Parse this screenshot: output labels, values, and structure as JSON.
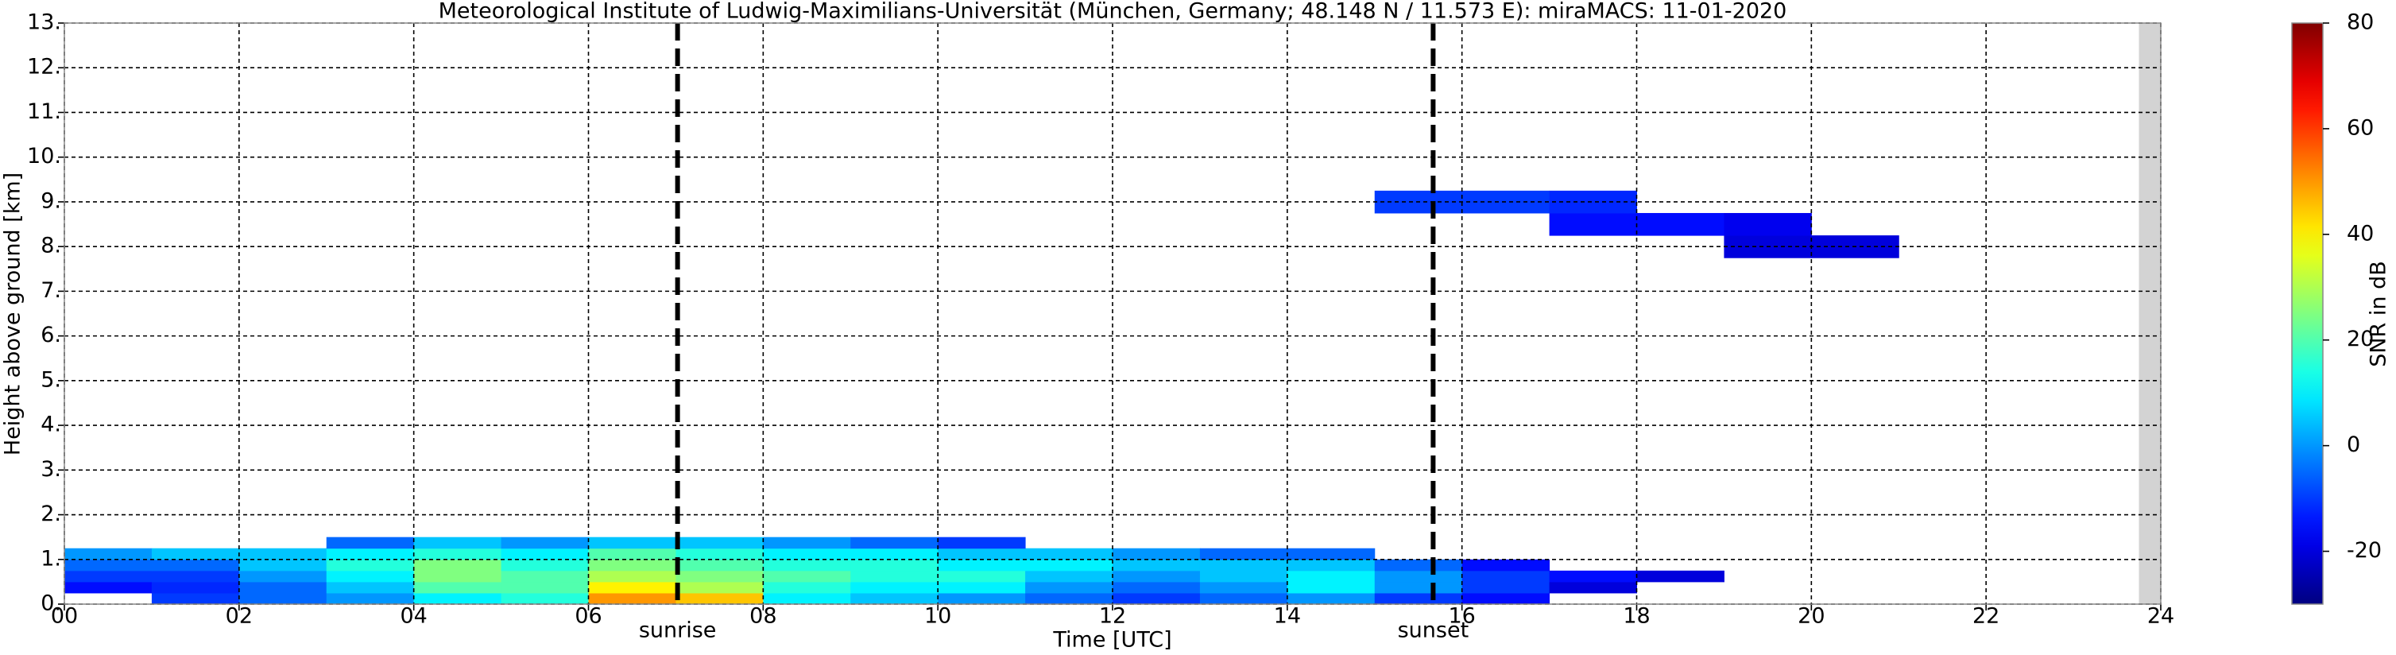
{
  "chart_data": {
    "type": "heatmap",
    "title": "Meteorological Institute of Ludwig-Maximilians-Universität (München, Germany; 48.148 N / 11.573 E):    miraMACS: 11-01-2020",
    "x_label": "Time [UTC]",
    "y_label": "Height above ground [km]",
    "colorbar_label": "SNR in dB",
    "colormap": "jet",
    "clim": [
      -30,
      80
    ],
    "cticks": [
      -20,
      0,
      20,
      40,
      60,
      80
    ],
    "xlim": [
      0,
      24
    ],
    "ylim": [
      0,
      13
    ],
    "xticks": [
      {
        "value": 0,
        "label": "00"
      },
      {
        "value": 2,
        "label": "02"
      },
      {
        "value": 4,
        "label": "04"
      },
      {
        "value": 6,
        "label": "06"
      },
      {
        "value": 8,
        "label": "08"
      },
      10,
      12,
      14,
      16,
      18,
      20,
      22,
      24
    ],
    "yticks": [
      {
        "value": 0,
        "label": "0."
      },
      {
        "value": 1,
        "label": "1."
      },
      {
        "value": 2,
        "label": "2."
      },
      {
        "value": 3,
        "label": "3."
      },
      {
        "value": 4,
        "label": "4."
      },
      {
        "value": 5,
        "label": "5."
      },
      {
        "value": 6,
        "label": "6."
      },
      {
        "value": 7,
        "label": "7."
      },
      {
        "value": 8,
        "label": "8."
      },
      {
        "value": 9,
        "label": "9."
      },
      {
        "value": 10,
        "label": "10."
      },
      {
        "value": 11,
        "label": "11."
      },
      {
        "value": 12,
        "label": "12."
      },
      {
        "value": 13,
        "label": "13."
      }
    ],
    "grid": true,
    "vlines": [
      {
        "x": 7.02,
        "label": "sunrise"
      },
      {
        "x": 15.67,
        "label": "sunset"
      }
    ],
    "no_data_span": [
      23.75,
      24
    ],
    "x": [
      0,
      1,
      2,
      3,
      4,
      5,
      6,
      7,
      8,
      9,
      10,
      11,
      12,
      13,
      14,
      15,
      16,
      17,
      18,
      19,
      20,
      21,
      22,
      23,
      24
    ],
    "y": [
      0,
      0.25,
      0.5,
      0.75,
      1.0,
      1.25,
      1.5,
      7.75,
      8.25,
      8.75,
      9.25
    ],
    "values": [
      [
        null,
        -10,
        -5,
        0,
        10,
        15,
        50,
        45,
        10,
        5,
        0,
        -5,
        -10,
        -5,
        0,
        -10,
        -15,
        null,
        null,
        null,
        null,
        null,
        null,
        null
      ],
      [
        -15,
        -12,
        -5,
        5,
        20,
        20,
        40,
        30,
        15,
        10,
        10,
        0,
        -5,
        0,
        10,
        0,
        -10,
        -20,
        null,
        null,
        null,
        null,
        null,
        null
      ],
      [
        -10,
        -10,
        0,
        10,
        25,
        20,
        30,
        25,
        20,
        15,
        15,
        5,
        0,
        5,
        10,
        0,
        -10,
        -15,
        -20,
        null,
        null,
        null,
        null,
        null
      ],
      [
        -5,
        -5,
        5,
        15,
        25,
        15,
        25,
        20,
        15,
        15,
        10,
        10,
        5,
        5,
        5,
        -5,
        -15,
        null,
        null,
        null,
        null,
        null,
        null,
        null
      ],
      [
        0,
        5,
        5,
        10,
        15,
        10,
        20,
        15,
        10,
        10,
        5,
        5,
        0,
        -5,
        -5,
        null,
        null,
        null,
        null,
        null,
        null,
        null,
        null,
        null
      ],
      [
        null,
        null,
        null,
        -5,
        5,
        0,
        5,
        5,
        0,
        -5,
        -10,
        null,
        null,
        null,
        null,
        null,
        null,
        null,
        null,
        null,
        null,
        null,
        null,
        null
      ],
      [
        null,
        null,
        null,
        null,
        null,
        null,
        null,
        null,
        null,
        null,
        null,
        null,
        null,
        null,
        null,
        null,
        null,
        null,
        null,
        null,
        null,
        null,
        null,
        null
      ],
      [
        null,
        null,
        null,
        null,
        null,
        null,
        null,
        null,
        null,
        null,
        null,
        null,
        null,
        null,
        null,
        null,
        null,
        null,
        null,
        -20,
        -20,
        null,
        null,
        null
      ],
      [
        null,
        null,
        null,
        null,
        null,
        null,
        null,
        null,
        null,
        null,
        null,
        null,
        null,
        null,
        null,
        null,
        null,
        -15,
        -15,
        -18,
        null,
        null,
        null,
        null
      ],
      [
        null,
        null,
        null,
        null,
        null,
        null,
        null,
        null,
        null,
        null,
        null,
        null,
        null,
        null,
        null,
        -10,
        -10,
        -12,
        null,
        null,
        null,
        null,
        null,
        null
      ]
    ]
  }
}
